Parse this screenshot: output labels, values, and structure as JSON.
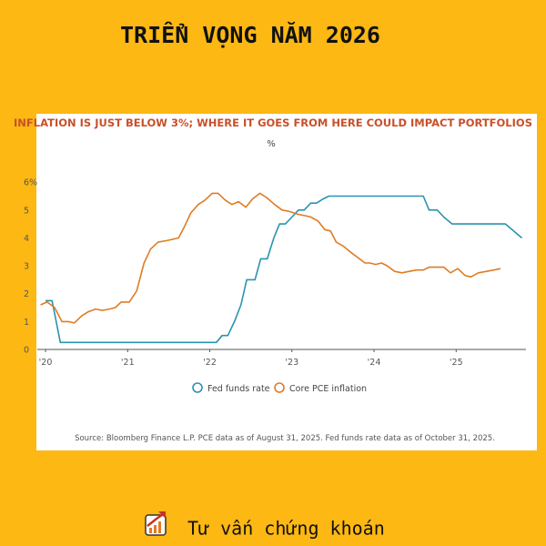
{
  "header": {
    "title": "TRIỂN VỌNG NĂM 2026"
  },
  "chart_data": {
    "type": "line",
    "title": "INFLATION IS JUST BELOW 3%; WHERE IT GOES FROM HERE COULD IMPACT PORTFOLIOS",
    "y_unit": "%",
    "xlim": [
      2019.9,
      2025.85
    ],
    "xticks": [
      {
        "value": 2020,
        "label": "'20"
      },
      {
        "value": 2021,
        "label": "'21"
      },
      {
        "value": 2022,
        "label": "'22"
      },
      {
        "value": 2023,
        "label": "'23"
      },
      {
        "value": 2024,
        "label": "'24"
      },
      {
        "value": 2025,
        "label": "'25"
      }
    ],
    "ylim": [
      0,
      6.3
    ],
    "yticks": [
      0,
      1,
      2,
      3,
      4,
      5,
      {
        "value": 6,
        "label": "6%"
      }
    ],
    "series": [
      {
        "name": "Fed funds rate",
        "color": "#2A93B0",
        "x": [
          2020.0,
          2020.08,
          2020.18,
          2022.08,
          2022.15,
          2022.22,
          2022.3,
          2022.38,
          2022.45,
          2022.55,
          2022.62,
          2022.7,
          2022.78,
          2022.85,
          2022.92,
          2023.0,
          2023.08,
          2023.15,
          2023.23,
          2023.3,
          2023.38,
          2023.45,
          2023.55,
          2024.6,
          2024.67,
          2024.77,
          2024.85,
          2024.95,
          2025.6,
          2025.8
        ],
        "values": [
          1.75,
          1.75,
          0.25,
          0.25,
          0.5,
          0.5,
          1.0,
          1.6,
          2.5,
          2.5,
          3.25,
          3.25,
          4.0,
          4.5,
          4.5,
          4.75,
          5.0,
          5.0,
          5.25,
          5.25,
          5.4,
          5.5,
          5.5,
          5.5,
          5.0,
          5.0,
          4.75,
          4.5,
          4.5,
          4.0
        ]
      },
      {
        "name": "Core PCE inflation",
        "color": "#E07B24",
        "x": [
          2019.94,
          2020.02,
          2020.11,
          2020.2,
          2020.28,
          2020.35,
          2020.44,
          2020.52,
          2020.61,
          2020.69,
          2020.78,
          2020.85,
          2020.92,
          2021.02,
          2021.11,
          2021.2,
          2021.28,
          2021.37,
          2021.47,
          2021.62,
          2021.69,
          2021.77,
          2021.86,
          2021.94,
          2022.03,
          2022.1,
          2022.19,
          2022.27,
          2022.35,
          2022.44,
          2022.52,
          2022.61,
          2022.69,
          2022.79,
          2022.88,
          2022.97,
          2023.07,
          2023.16,
          2023.23,
          2023.32,
          2023.4,
          2023.47,
          2023.54,
          2023.63,
          2023.71,
          2023.8,
          2023.89,
          2023.95,
          2024.02,
          2024.09,
          2024.16,
          2024.25,
          2024.34,
          2024.43,
          2024.52,
          2024.6,
          2024.67,
          2024.76,
          2024.85,
          2024.93,
          2025.02,
          2025.11,
          2025.18,
          2025.27,
          2025.37,
          2025.46,
          2025.54
        ],
        "values": [
          1.6,
          1.7,
          1.5,
          1.0,
          1.0,
          0.95,
          1.2,
          1.35,
          1.45,
          1.4,
          1.45,
          1.5,
          1.7,
          1.7,
          2.1,
          3.1,
          3.6,
          3.85,
          3.9,
          4.0,
          4.4,
          4.9,
          5.2,
          5.35,
          5.6,
          5.6,
          5.35,
          5.2,
          5.3,
          5.1,
          5.4,
          5.6,
          5.45,
          5.2,
          5.0,
          4.95,
          4.85,
          4.8,
          4.75,
          4.6,
          4.3,
          4.25,
          3.85,
          3.7,
          3.5,
          3.3,
          3.1,
          3.1,
          3.05,
          3.1,
          3.0,
          2.8,
          2.75,
          2.8,
          2.85,
          2.85,
          2.95,
          2.95,
          2.95,
          2.75,
          2.9,
          2.65,
          2.6,
          2.75,
          2.8,
          2.85,
          2.9
        ]
      }
    ],
    "source": "Source: Bloomberg Finance L.P. PCE data as of August 31, 2025. Fed funds rate data as of October 31, 2025."
  },
  "footer": {
    "text": "Tư vấn chứng khoán"
  }
}
